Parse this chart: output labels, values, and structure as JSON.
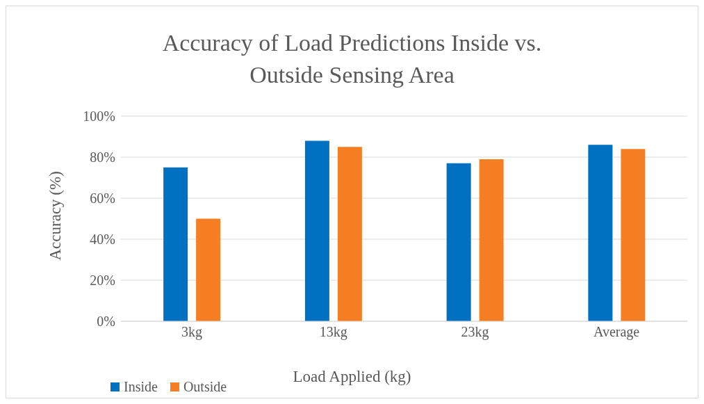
{
  "chart_data": {
    "type": "bar",
    "title": "Accuracy of Load Predictions Inside vs. Outside Sensing Area",
    "xlabel": "Load Applied (kg)",
    "ylabel": "Accuracy (%)",
    "categories": [
      "3kg",
      "13kg",
      "23kg",
      "Average"
    ],
    "series": [
      {
        "name": "Inside",
        "color": "#0070c0",
        "values": [
          75,
          88,
          77,
          86
        ]
      },
      {
        "name": "Outside",
        "color": "#f57f22",
        "values": [
          50,
          85,
          79,
          84
        ]
      }
    ],
    "ylim": [
      0,
      100
    ],
    "yticks": [
      {
        "value": 0,
        "label": "0%"
      },
      {
        "value": 20,
        "label": "20%"
      },
      {
        "value": 40,
        "label": "40%"
      },
      {
        "value": 60,
        "label": "60%"
      },
      {
        "value": 80,
        "label": "80%"
      },
      {
        "value": 100,
        "label": "100%"
      }
    ],
    "grid": "y",
    "legend": "bottom left"
  }
}
